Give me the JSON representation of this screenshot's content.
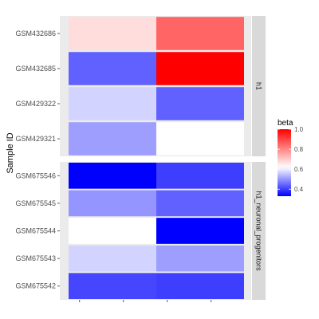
{
  "chart_data": {
    "type": "heatmap",
    "ylabel": "Sample ID",
    "fill_scale": {
      "name": "beta",
      "low_color": "#0000FF",
      "mid_color": "#FFFFFF",
      "high_color": "#FF0000",
      "limits": [
        0.33,
        1.0
      ],
      "midpoint": 0.62,
      "breaks": [
        0.4,
        0.6,
        0.8,
        1.0
      ],
      "break_labels": [
        "0.4",
        "0.6",
        "0.8",
        "1.0"
      ]
    },
    "columns": [
      "",
      ""
    ],
    "panels": [
      {
        "label": "h1",
        "rows": [
          {
            "id": "GSM432686",
            "values": [
              0.67,
              0.85
            ]
          },
          {
            "id": "GSM432685",
            "values": [
              0.44,
              1.0
            ]
          },
          {
            "id": "GSM429322",
            "values": [
              0.57,
              0.44
            ]
          },
          {
            "id": "GSM429321",
            "values": [
              0.51,
              0.62
            ]
          }
        ]
      },
      {
        "label": "h1_neuronal_progenitors",
        "rows": [
          {
            "id": "GSM675546",
            "values": [
              0.33,
              0.4
            ]
          },
          {
            "id": "GSM675545",
            "values": [
              0.5,
              0.44
            ]
          },
          {
            "id": "GSM675544",
            "values": [
              0.62,
              0.33
            ]
          },
          {
            "id": "GSM675543",
            "values": [
              0.57,
              0.51
            ]
          },
          {
            "id": "GSM675542",
            "values": [
              0.41,
              0.4
            ]
          }
        ]
      }
    ]
  }
}
